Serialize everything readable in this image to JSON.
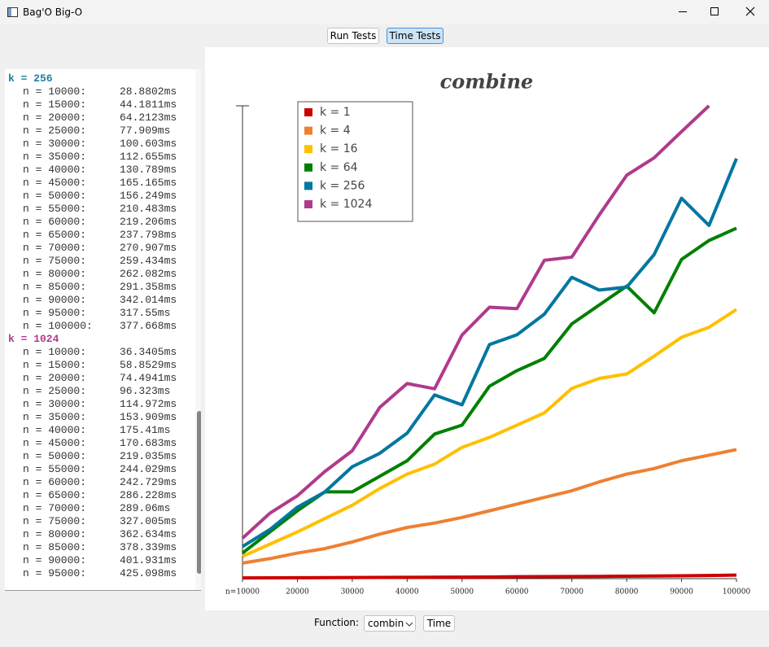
{
  "window": {
    "title": "Bag'O Big-O"
  },
  "tabs": [
    "Run Tests",
    "Time Tests"
  ],
  "log": [
    {
      "header": "k = 256",
      "color": "#1a7fa0",
      "entries": [
        [
          "n = 10000:",
          "28.8802ms"
        ],
        [
          "n = 15000:",
          "44.1811ms"
        ],
        [
          "n = 20000:",
          "64.2123ms"
        ],
        [
          "n = 25000:",
          "77.909ms"
        ],
        [
          "n = 30000:",
          "100.603ms"
        ],
        [
          "n = 35000:",
          "112.655ms"
        ],
        [
          "n = 40000:",
          "130.789ms"
        ],
        [
          "n = 45000:",
          "165.165ms"
        ],
        [
          "n = 50000:",
          "156.249ms"
        ],
        [
          "n = 55000:",
          "210.483ms"
        ],
        [
          "n = 60000:",
          "219.206ms"
        ],
        [
          "n = 65000:",
          "237.798ms"
        ],
        [
          "n = 70000:",
          "270.907ms"
        ],
        [
          "n = 75000:",
          "259.434ms"
        ],
        [
          "n = 80000:",
          "262.082ms"
        ],
        [
          "n = 85000:",
          "291.358ms"
        ],
        [
          "n = 90000:",
          "342.014ms"
        ],
        [
          "n = 95000:",
          "317.55ms"
        ],
        [
          "n = 100000:",
          "377.668ms"
        ]
      ]
    },
    {
      "header": "k = 1024",
      "color": "#b03a8c",
      "entries": [
        [
          "n = 10000:",
          "36.3405ms"
        ],
        [
          "n = 15000:",
          "58.8529ms"
        ],
        [
          "n = 20000:",
          "74.4941ms"
        ],
        [
          "n = 25000:",
          "96.323ms"
        ],
        [
          "n = 30000:",
          "114.972ms"
        ],
        [
          "n = 35000:",
          "153.909ms"
        ],
        [
          "n = 40000:",
          "175.41ms"
        ],
        [
          "n = 45000:",
          "170.683ms"
        ],
        [
          "n = 50000:",
          "219.035ms"
        ],
        [
          "n = 55000:",
          "244.029ms"
        ],
        [
          "n = 60000:",
          "242.729ms"
        ],
        [
          "n = 65000:",
          "286.228ms"
        ],
        [
          "n = 70000:",
          "289.06ms"
        ],
        [
          "n = 75000:",
          "327.005ms"
        ],
        [
          "n = 80000:",
          "362.634ms"
        ],
        [
          "n = 85000:",
          "378.339ms"
        ],
        [
          "n = 90000:",
          "401.931ms"
        ],
        [
          "n = 95000:",
          "425.098ms"
        ]
      ]
    }
  ],
  "chart_data": {
    "type": "line",
    "title": "combine",
    "x": [
      10000,
      15000,
      20000,
      25000,
      30000,
      35000,
      40000,
      45000,
      50000,
      55000,
      60000,
      65000,
      70000,
      75000,
      80000,
      85000,
      90000,
      95000,
      100000
    ],
    "series": [
      {
        "name": "k = 1",
        "color": "#cc0000",
        "values": [
          0.6,
          0.7,
          0.8,
          0.9,
          1.0,
          1.1,
          1.2,
          1.3,
          1.4,
          1.5,
          1.7,
          1.8,
          1.9,
          2.0,
          2.2,
          2.4,
          2.6,
          2.8,
          3.2
        ]
      },
      {
        "name": "k = 4",
        "color": "#ee8033",
        "values": [
          14,
          18,
          23,
          27,
          33,
          40,
          46,
          50,
          55,
          61,
          67,
          73,
          79,
          87,
          94,
          99,
          106,
          111,
          116
        ]
      },
      {
        "name": "k = 16",
        "color": "#ffc000",
        "values": [
          20,
          31,
          42,
          54,
          66,
          81,
          94,
          103,
          118,
          127,
          138,
          149,
          171,
          180,
          184,
          200,
          217,
          226,
          242
        ]
      },
      {
        "name": "k = 64",
        "color": "#008000",
        "values": [
          23,
          42,
          61,
          78,
          78,
          92,
          106,
          130,
          138,
          173,
          187,
          198,
          229,
          246,
          263,
          239,
          287,
          304,
          315
        ]
      },
      {
        "name": "k = 256",
        "color": "#0077a0",
        "values": [
          28.8802,
          44.1811,
          64.2123,
          77.909,
          100.603,
          112.655,
          130.789,
          165.165,
          156.249,
          210.483,
          219.206,
          237.798,
          270.907,
          259.434,
          262.082,
          291.358,
          342.014,
          317.55,
          377.668
        ]
      },
      {
        "name": "k = 1024",
        "color": "#b03a8c",
        "values": [
          36.3405,
          58.8529,
          74.4941,
          96.323,
          114.972,
          153.909,
          175.41,
          170.683,
          219.035,
          244.029,
          242.729,
          286.228,
          289.06,
          327.005,
          362.634,
          378.339,
          401.931,
          425.098,
          null
        ]
      }
    ],
    "xlim": [
      10000,
      100000
    ],
    "ylim": [
      0,
      425.098
    ],
    "xticks": [
      {
        "value": 10000,
        "label": "n=10000"
      },
      20000,
      30000,
      40000,
      50000,
      60000,
      70000,
      80000,
      90000,
      100000
    ],
    "legend": "upper left"
  },
  "controls": {
    "function_label": "Function:",
    "function_value": "combin",
    "button": "Time"
  }
}
